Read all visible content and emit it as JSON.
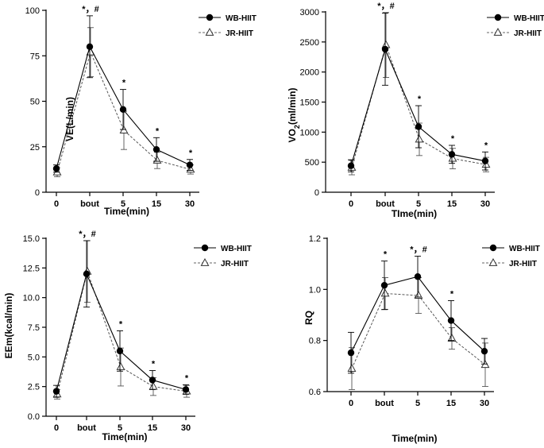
{
  "chart_data": [
    {
      "type": "line",
      "categories": [
        "0",
        "bout",
        "5",
        "15",
        "30"
      ],
      "ylabel": "VE(L/min)",
      "xlabel": "Time(min)",
      "ylim": [
        0,
        100
      ],
      "yticks": [
        0,
        25,
        50,
        75,
        100
      ],
      "legend_position": "top-right",
      "series": [
        {
          "name": "WB-HIIT",
          "values": [
            13,
            80,
            45.5,
            23.5,
            15
          ],
          "err": [
            2,
            17,
            11,
            6.5,
            3
          ]
        },
        {
          "name": "JR-HIIT",
          "values": [
            11,
            77,
            34,
            17.5,
            12.5
          ],
          "err": [
            2.5,
            13.5,
            10.5,
            4.5,
            2.5
          ]
        }
      ],
      "annotations": [
        {
          "x": "bout",
          "text": "*，#"
        },
        {
          "x": "5",
          "text": "*"
        },
        {
          "x": "15",
          "text": "*"
        },
        {
          "x": "30",
          "text": "*"
        }
      ]
    },
    {
      "type": "line",
      "categories": [
        "0",
        "bout",
        "5",
        "15",
        "30"
      ],
      "ylabel": "VO2(ml/min)",
      "xlabel": "TIme(min)",
      "ylim": [
        0,
        3000
      ],
      "yticks": [
        0,
        500,
        1000,
        1500,
        2000,
        2500,
        3000
      ],
      "legend_position": "top-right",
      "series": [
        {
          "name": "WB-HIIT",
          "values": [
            440,
            2380,
            1090,
            630,
            520
          ],
          "err": [
            100,
            600,
            350,
            150,
            150
          ]
        },
        {
          "name": "JR-HIIT",
          "values": [
            410,
            2450,
            880,
            560,
            460
          ],
          "err": [
            120,
            540,
            270,
            170,
            120
          ]
        }
      ],
      "annotations": [
        {
          "x": "bout",
          "text": "*，#"
        },
        {
          "x": "5",
          "text": "*"
        },
        {
          "x": "15",
          "text": "*"
        },
        {
          "x": "30",
          "text": "*"
        }
      ]
    },
    {
      "type": "line",
      "categories": [
        "0",
        "bout",
        "5",
        "15",
        "30"
      ],
      "ylabel": "EEm(kcal/min)",
      "xlabel": "Time(min)",
      "ylim": [
        0,
        15
      ],
      "yticks": [
        "0.0",
        "2.5",
        "5.0",
        "7.5",
        "10.0",
        "12.5",
        "15.0"
      ],
      "legend_position": "top-right",
      "series": [
        {
          "name": "WB-HIIT",
          "values": [
            2.1,
            12.0,
            5.5,
            3.05,
            2.25
          ],
          "err": [
            0.5,
            2.8,
            1.7,
            0.8,
            0.4
          ]
        },
        {
          "name": "JR-HIIT",
          "values": [
            1.85,
            12.2,
            4.15,
            2.5,
            2.1
          ],
          "err": [
            0.4,
            2.6,
            1.6,
            0.75,
            0.5
          ]
        }
      ],
      "annotations": [
        {
          "x": "bout",
          "text": "*，#"
        },
        {
          "x": "5",
          "text": "*"
        },
        {
          "x": "15",
          "text": "*"
        },
        {
          "x": "30",
          "text": "*"
        }
      ]
    },
    {
      "type": "line",
      "categories": [
        "0",
        "bout",
        "5",
        "15",
        "30"
      ],
      "ylabel": "RQ",
      "xlabel": "Time(min)",
      "ylim": [
        0.6,
        1.2
      ],
      "yticks": [
        "0.6",
        "0.8",
        "1.0",
        "1.2"
      ],
      "legend_position": "top-right",
      "series": [
        {
          "name": "WB-HIIT",
          "values": [
            0.752,
            1.016,
            1.05,
            0.878,
            0.758
          ],
          "err": [
            0.08,
            0.095,
            0.08,
            0.078,
            0.05
          ]
        },
        {
          "name": "JR-HIIT",
          "values": [
            0.69,
            0.984,
            0.976,
            0.808,
            0.705
          ],
          "err": [
            0.082,
            0.062,
            0.07,
            0.042,
            0.085
          ]
        }
      ],
      "annotations": [
        {
          "x": "bout",
          "text": "*"
        },
        {
          "x": "5",
          "text": "*，#"
        },
        {
          "x": "15",
          "text": "*"
        }
      ]
    }
  ]
}
